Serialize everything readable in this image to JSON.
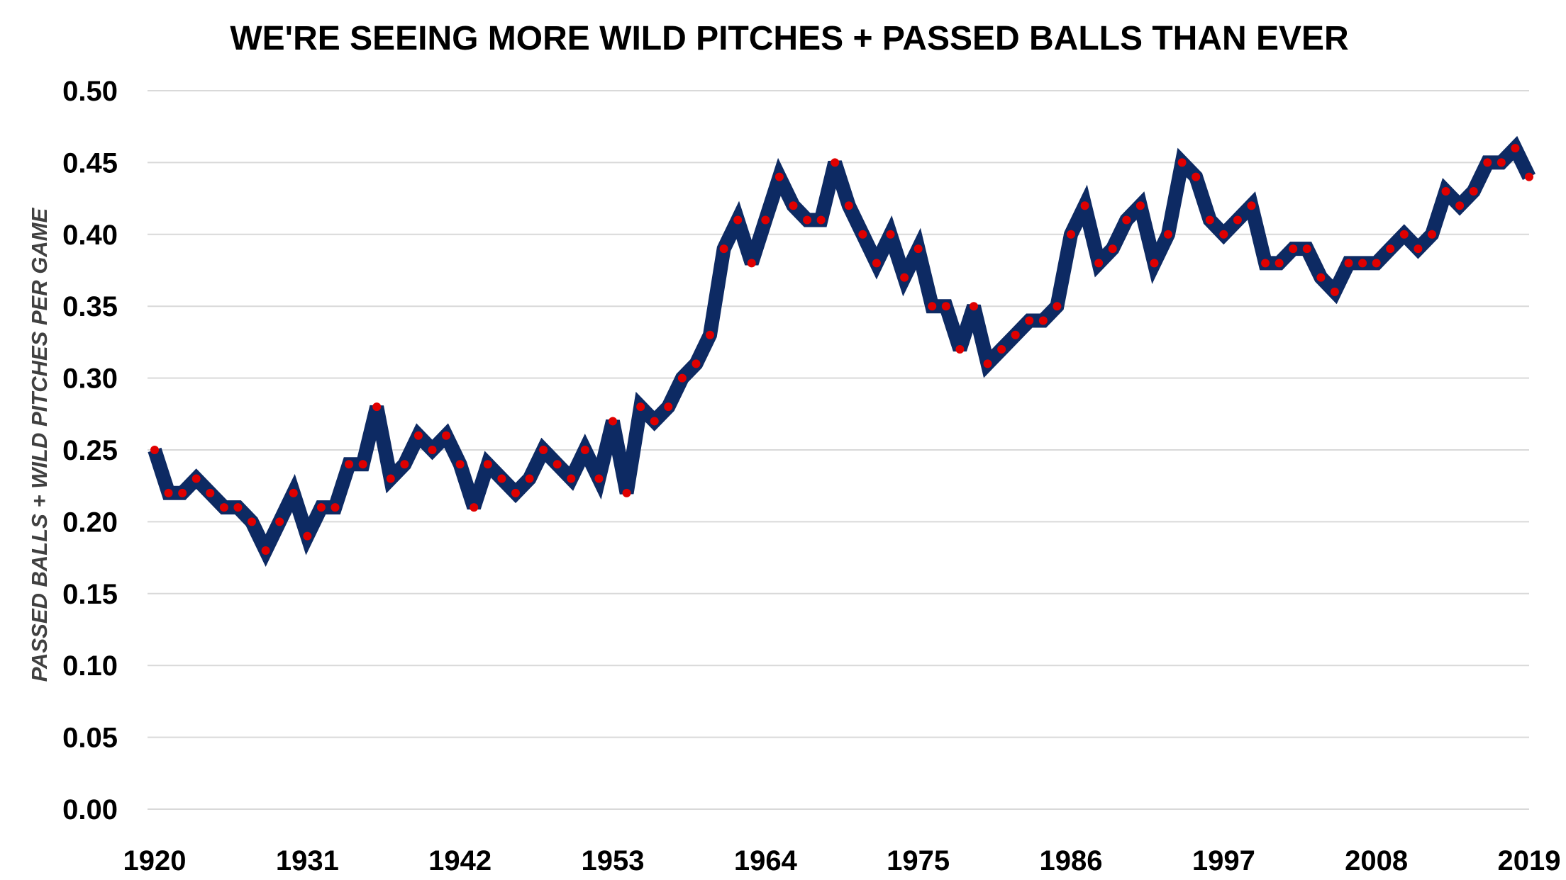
{
  "chart_data": {
    "type": "line",
    "title": "WE'RE SEEING MORE WILD PITCHES + PASSED BALLS THAN EVER",
    "xlabel": "",
    "ylabel": "PASSED BALLS + WILD PITCHES PER GAME",
    "xlim": [
      1920,
      2019
    ],
    "ylim": [
      0,
      0.5
    ],
    "x_ticks": [
      "1920",
      "1931",
      "1942",
      "1953",
      "1964",
      "1975",
      "1986",
      "1997",
      "2008",
      "2019"
    ],
    "y_ticks": [
      "0.00",
      "0.05",
      "0.10",
      "0.15",
      "0.20",
      "0.25",
      "0.30",
      "0.35",
      "0.40",
      "0.45",
      "0.50"
    ],
    "grid": "horizontal",
    "legend": "none",
    "line_color": "#0d2a63",
    "marker_color": "#e00000",
    "grid_color": "#d9d9d9",
    "x": [
      1920,
      1921,
      1922,
      1923,
      1924,
      1925,
      1926,
      1927,
      1928,
      1929,
      1930,
      1931,
      1932,
      1933,
      1934,
      1935,
      1936,
      1937,
      1938,
      1939,
      1940,
      1941,
      1942,
      1943,
      1944,
      1945,
      1946,
      1947,
      1948,
      1949,
      1950,
      1951,
      1952,
      1953,
      1954,
      1955,
      1956,
      1957,
      1958,
      1959,
      1960,
      1961,
      1962,
      1963,
      1964,
      1965,
      1966,
      1967,
      1968,
      1969,
      1970,
      1971,
      1972,
      1973,
      1974,
      1975,
      1976,
      1977,
      1978,
      1979,
      1980,
      1981,
      1982,
      1983,
      1984,
      1985,
      1986,
      1987,
      1988,
      1989,
      1990,
      1991,
      1992,
      1993,
      1994,
      1995,
      1996,
      1997,
      1998,
      1999,
      2000,
      2001,
      2002,
      2003,
      2004,
      2005,
      2006,
      2007,
      2008,
      2009,
      2010,
      2011,
      2012,
      2013,
      2014,
      2015,
      2016,
      2017,
      2018,
      2019
    ],
    "series": [
      {
        "values": [
          0.25,
          0.22,
          0.22,
          0.23,
          0.22,
          0.21,
          0.21,
          0.2,
          0.18,
          0.2,
          0.22,
          0.19,
          0.21,
          0.21,
          0.24,
          0.24,
          0.28,
          0.23,
          0.24,
          0.26,
          0.25,
          0.26,
          0.24,
          0.21,
          0.24,
          0.23,
          0.22,
          0.23,
          0.25,
          0.24,
          0.23,
          0.25,
          0.23,
          0.27,
          0.22,
          0.28,
          0.27,
          0.28,
          0.3,
          0.31,
          0.33,
          0.39,
          0.41,
          0.38,
          0.41,
          0.44,
          0.42,
          0.41,
          0.41,
          0.45,
          0.42,
          0.4,
          0.38,
          0.4,
          0.37,
          0.39,
          0.35,
          0.35,
          0.32,
          0.35,
          0.31,
          0.32,
          0.33,
          0.34,
          0.34,
          0.35,
          0.4,
          0.42,
          0.38,
          0.39,
          0.41,
          0.42,
          0.38,
          0.4,
          0.45,
          0.44,
          0.41,
          0.4,
          0.41,
          0.42,
          0.38,
          0.38,
          0.39,
          0.39,
          0.37,
          0.36,
          0.38,
          0.38,
          0.38,
          0.39,
          0.4,
          0.39,
          0.4,
          0.43,
          0.42,
          0.43,
          0.45,
          0.45,
          0.46,
          0.44
        ]
      }
    ]
  }
}
